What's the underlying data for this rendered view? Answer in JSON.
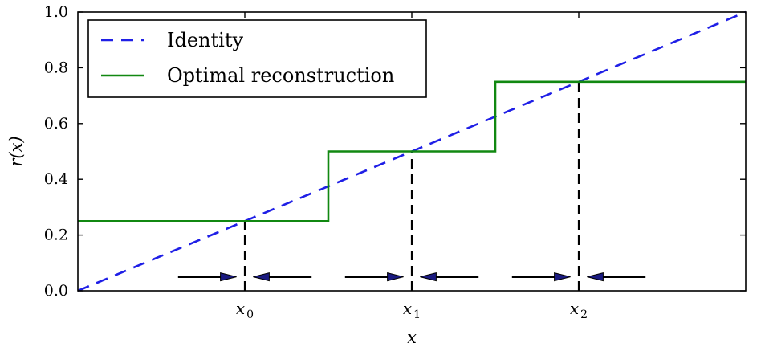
{
  "chart_data": {
    "type": "line",
    "title": "",
    "xlabel": "x",
    "ylabel": "r(x)",
    "xlim": [
      0,
      4
    ],
    "ylim": [
      0,
      1.0
    ],
    "yticks": [
      0.0,
      0.2,
      0.4,
      0.6,
      0.8,
      1.0
    ],
    "ytick_labels": [
      "0.0",
      "0.2",
      "0.4",
      "0.6",
      "0.8",
      "1.0"
    ],
    "xticks": [
      {
        "value": 1,
        "base": "x",
        "sub": "0"
      },
      {
        "value": 2,
        "base": "x",
        "sub": "1"
      },
      {
        "value": 3,
        "base": "x",
        "sub": "2"
      }
    ],
    "grid": false,
    "legend": "top-left",
    "series": [
      {
        "name": "Identity",
        "style": "dashed",
        "color": "#1f1fe6",
        "points": [
          [
            0,
            0.0
          ],
          [
            4,
            1.0
          ]
        ]
      },
      {
        "name": "Optimal reconstruction",
        "style": "solid",
        "color": "#118811",
        "points": [
          [
            0,
            0.25
          ],
          [
            1.5,
            0.25
          ],
          [
            1.5,
            0.5
          ],
          [
            2.5,
            0.5
          ],
          [
            2.5,
            0.75
          ],
          [
            4,
            0.75
          ]
        ]
      }
    ],
    "guides": [
      {
        "x": 1,
        "y": 0.25
      },
      {
        "x": 2,
        "y": 0.5
      },
      {
        "x": 3,
        "y": 0.75
      }
    ],
    "arrows": [
      {
        "from": 0.6,
        "to": 0.95,
        "y": 0.05
      },
      {
        "from": 1.4,
        "to": 1.05,
        "y": 0.05
      },
      {
        "from": 1.6,
        "to": 1.95,
        "y": 0.05
      },
      {
        "from": 2.4,
        "to": 2.05,
        "y": 0.05
      },
      {
        "from": 2.6,
        "to": 2.95,
        "y": 0.05
      },
      {
        "from": 3.4,
        "to": 3.05,
        "y": 0.05
      }
    ],
    "arrow_color": "#000000",
    "arrow_head_color": "#1a1a80"
  }
}
